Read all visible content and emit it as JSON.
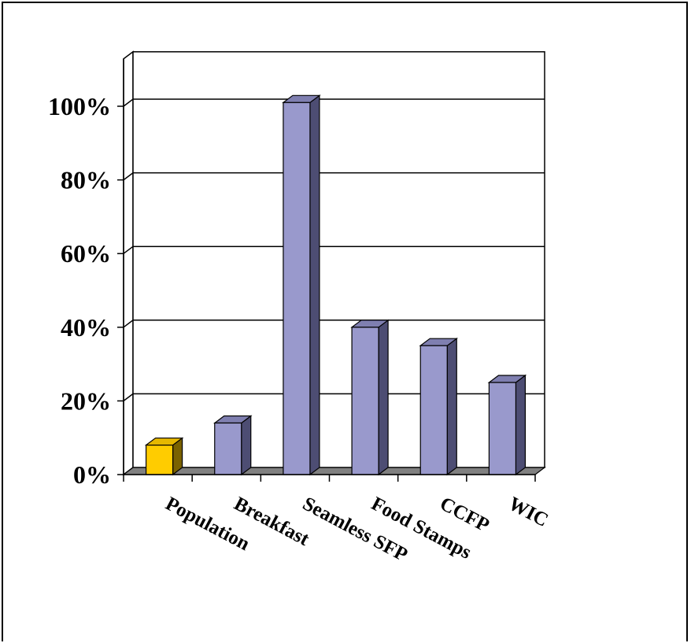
{
  "chart_data": {
    "type": "bar",
    "title": "",
    "xlabel": "",
    "ylabel": "",
    "categories": [
      "Population",
      "Breakfast",
      "Seamless SFP",
      "Food Stamps",
      "CCFP",
      "WIC"
    ],
    "values": [
      8,
      14,
      101,
      40,
      35,
      25
    ],
    "ylim": [
      0,
      100
    ],
    "yticks": [
      "0%",
      "20%",
      "40%",
      "60%",
      "80%",
      "100%"
    ],
    "grid": true,
    "legend": "none",
    "style": "3d",
    "colors": {
      "highlight_bar": "#FFCC00",
      "bar": "#9999CC",
      "bar_side": "#4D4D73",
      "floor": "#808080"
    },
    "highlight_index": 0
  }
}
